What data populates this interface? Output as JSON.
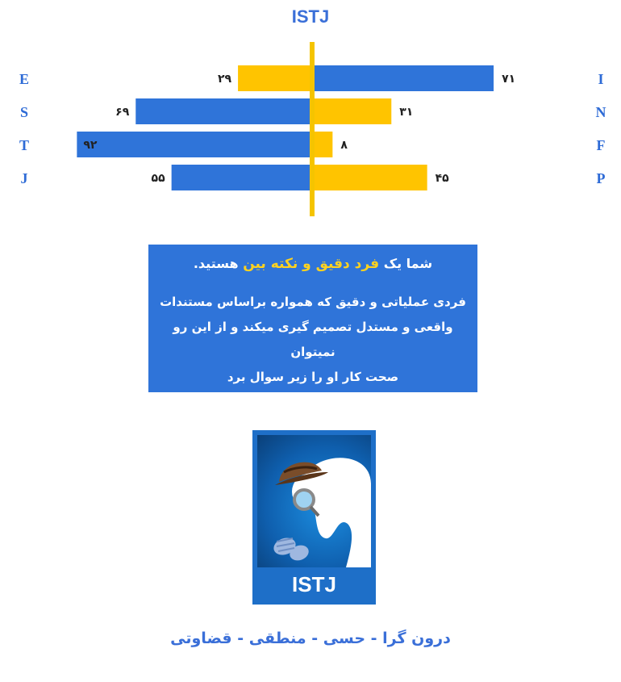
{
  "chart_data": {
    "type": "bar",
    "title": "ISTJ",
    "categories_left": [
      "E",
      "S",
      "T",
      "J"
    ],
    "categories_right": [
      "I",
      "N",
      "F",
      "P"
    ],
    "left_values": [
      29,
      69,
      92,
      55
    ],
    "right_values": [
      71,
      31,
      8,
      45
    ],
    "left_labels": [
      "۲۹",
      "۶۹",
      "۹۲",
      "۵۵"
    ],
    "right_labels": [
      "۷۱",
      "۳۱",
      "۸",
      "۴۵"
    ],
    "xlim": [
      0,
      100
    ],
    "colors": {
      "dominant": "#2f74d9",
      "minor": "#ffc400",
      "axis": "#f5c400"
    }
  },
  "description": {
    "prefix": "شما یک",
    "highlight": "فرد دقیق و نکته بین",
    "suffix": "هستید.",
    "body_lines": [
      "فردی عملیاتی و دقیق که همواره براساس مستندات",
      "واقعی و مستدل تصمیم گیری میکند و از این رو نمیتوان",
      "صحت کار او را زیر سوال برد"
    ]
  },
  "card": {
    "label": "ISTJ"
  },
  "traits": "درون گرا - حسی - منطقی - قضاوتی"
}
